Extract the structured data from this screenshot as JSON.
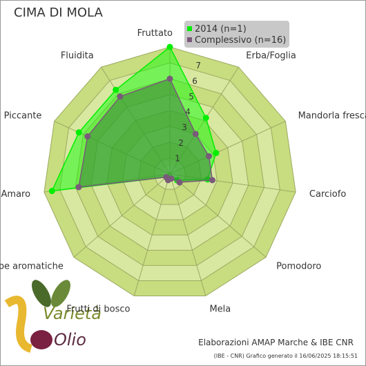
{
  "chart_data": {
    "type": "radar",
    "title": "CIMA DI MOLA",
    "categories": [
      "Fruttato",
      "Erba/Foglia",
      "Mandorla fresca",
      "Carciofo",
      "Pomodoro",
      "Mela",
      "Frutti di bosco",
      "Erbe aromatiche",
      "Amaro",
      "Piccante",
      "Fluidita"
    ],
    "series": [
      {
        "name": "2014 (n=1)",
        "color": "#00ee00",
        "values": [
          8,
          4.2,
          3.2,
          2.4,
          0.6,
          0.3,
          0.3,
          0.3,
          7.5,
          6.3,
          6.3
        ]
      },
      {
        "name": "Complessivo (n=16)",
        "color": "#7a5a7a",
        "values": [
          6,
          3,
          2.7,
          2.7,
          0.8,
          0.3,
          0.4,
          0.3,
          5.8,
          5.7,
          5.8
        ]
      }
    ],
    "ylim": [
      0,
      8
    ],
    "yticks": [
      1,
      2,
      3,
      4,
      5,
      6,
      7
    ],
    "grid": true,
    "credit": "Elaborazioni AMAP Marche & IBE CNR",
    "footnote": "(IBE - CNR) Grafico generato il 16/06/2025 18:15:51",
    "logo": [
      "Varietà",
      "Olio"
    ]
  }
}
